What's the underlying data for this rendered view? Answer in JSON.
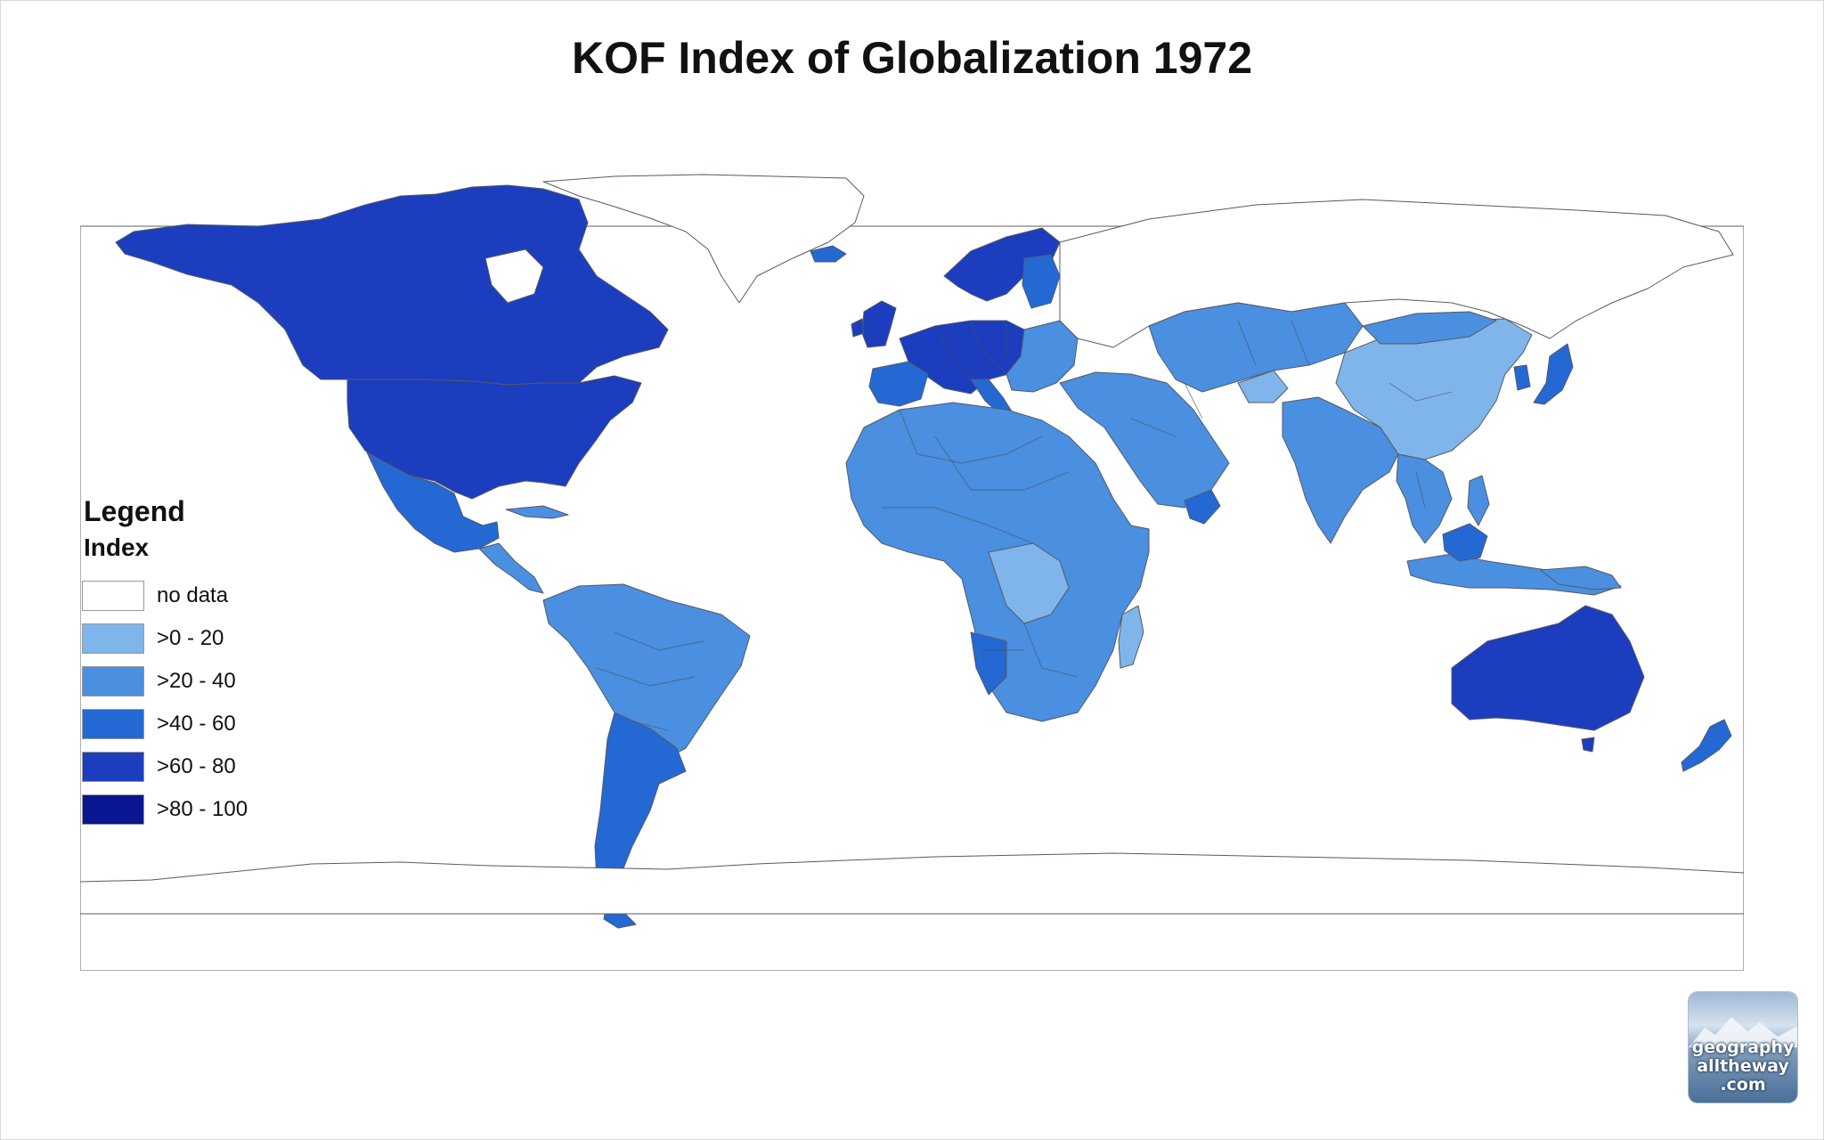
{
  "title": "KOF Index of Globalization 1972",
  "legend": {
    "title": "Legend",
    "subtitle": "Index",
    "items": [
      {
        "label": "no data",
        "color": "#ffffff"
      },
      {
        "label": ">0 - 20",
        "color": "#7fb5ea"
      },
      {
        "label": ">20 - 40",
        "color": "#4a8fe0"
      },
      {
        "label": ">40 - 60",
        "color": "#2468d4"
      },
      {
        "label": ">60 - 80",
        "color": "#1c3dbd"
      },
      {
        "label": ">80 - 100",
        "color": "#0a1690"
      }
    ]
  },
  "regions": [
    {
      "name": "Canada",
      "class": ">60 - 80"
    },
    {
      "name": "United States",
      "class": ">60 - 80"
    },
    {
      "name": "Mexico",
      "class": ">40 - 60"
    },
    {
      "name": "Central America",
      "class": ">20 - 40"
    },
    {
      "name": "South America",
      "class": ">20 - 40"
    },
    {
      "name": "Argentina",
      "class": ">40 - 60"
    },
    {
      "name": "Western Europe",
      "class": ">60 - 80"
    },
    {
      "name": "Scandinavia",
      "class": ">60 - 80"
    },
    {
      "name": "Eastern Europe",
      "class": ">20 - 40"
    },
    {
      "name": "Africa",
      "class": ">20 - 40"
    },
    {
      "name": "DR Congo",
      "class": ">0 - 20"
    },
    {
      "name": "Madagascar",
      "class": ">0 - 20"
    },
    {
      "name": "Middle East",
      "class": ">20 - 40"
    },
    {
      "name": "Central Asia",
      "class": ">20 - 40"
    },
    {
      "name": "India",
      "class": ">20 - 40"
    },
    {
      "name": "China",
      "class": ">0 - 20"
    },
    {
      "name": "Japan",
      "class": ">40 - 60"
    },
    {
      "name": "Southeast Asia",
      "class": ">20 - 40"
    },
    {
      "name": "Indonesia",
      "class": ">20 - 40"
    },
    {
      "name": "Australia",
      "class": ">60 - 80"
    },
    {
      "name": "New Zealand",
      "class": ">40 - 60"
    },
    {
      "name": "Greenland",
      "class": "no data"
    },
    {
      "name": "Russia",
      "class": "no data"
    },
    {
      "name": "Antarctica",
      "class": "no data"
    }
  ],
  "watermark": {
    "line1": "geography",
    "line2": "alltheway",
    "line3": ".com"
  }
}
